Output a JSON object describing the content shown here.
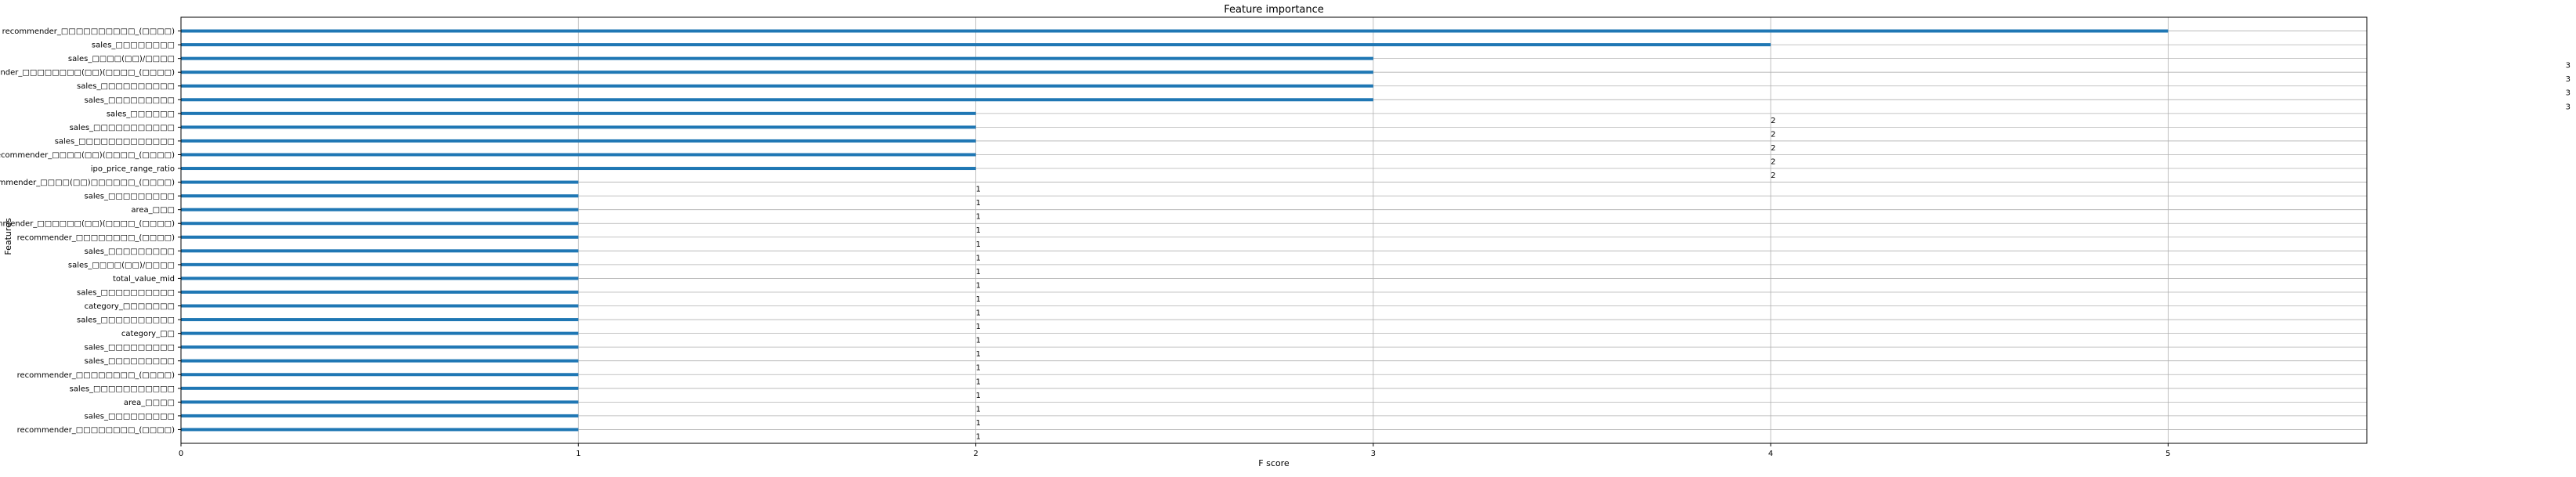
{
  "chart_data": {
    "type": "bar",
    "orientation": "horizontal",
    "title": "Feature importance",
    "xlabel": "F score",
    "ylabel": "Features",
    "xlim": [
      0,
      5.5
    ],
    "xticks": [
      "0",
      "1",
      "2",
      "3",
      "4",
      "5"
    ],
    "grid": true,
    "bar_color": "#1f77b4",
    "categories": [
      "recommender_□□□□□□□□□□_(□□□□)",
      "sales_□□□□□□□□",
      "sales_□□□□(□□)/□□□□",
      "recommender_□□□□□□□□(□□)(□□□□_(□□□□)",
      "sales_□□□□□□□□□□",
      "sales_□□□□□□□□□",
      "sales_□□□□□□",
      "sales_□□□□□□□□□□□",
      "sales_□□□□□□□□□□□□□",
      "recommender_□□□□(□□)(□□□□_(□□□□)",
      "ipo_price_range_ratio",
      "recommender_□□□□(□□)□□□□□□_(□□□□)",
      "sales_□□□□□□□□□",
      "area_□□□",
      "recommender_□□□□□□(□□)(□□□□_(□□□□)",
      "recommender_□□□□□□□□_(□□□□)",
      "sales_□□□□□□□□□",
      "sales_□□□□(□□)/□□□□",
      "total_value_mid",
      "sales_□□□□□□□□□□",
      "category_□□□□□□□",
      "sales_□□□□□□□□□□",
      "category_□□",
      "sales_□□□□□□□□□",
      "sales_□□□□□□□□□",
      "recommender_□□□□□□□□_(□□□□)",
      "sales_□□□□□□□□□□□",
      "area_□□□□",
      "sales_□□□□□□□□□",
      "recommender_□□□□□□□□_(□□□□)"
    ],
    "values": [
      5,
      4,
      3,
      3,
      3,
      3,
      2,
      2,
      2,
      2,
      2,
      1,
      1,
      1,
      1,
      1,
      1,
      1,
      1,
      1,
      1,
      1,
      1,
      1,
      1,
      1,
      1,
      1,
      1,
      1
    ]
  }
}
